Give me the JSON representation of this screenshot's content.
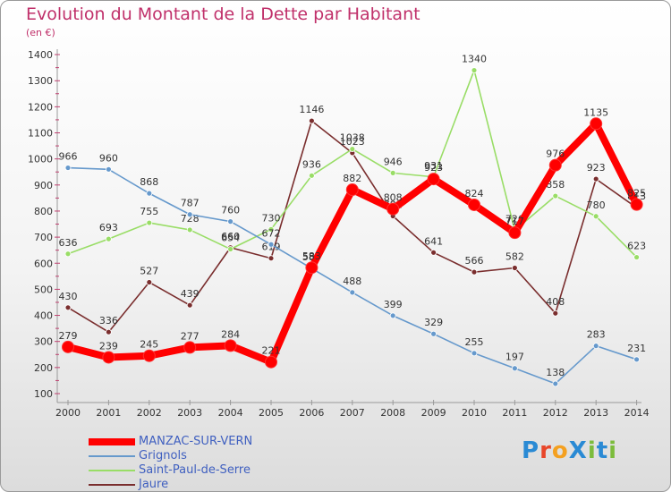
{
  "title": "Evolution du Montant de la Dette par Habitant",
  "subtitle": "(en €)",
  "logo": {
    "text": "ProXiti",
    "letters": [
      "P",
      "r",
      "o",
      "X",
      "i",
      "t",
      "i"
    ],
    "colors": [
      "#2a8ad4",
      "#e8462a",
      "#f4a020",
      "#2a8ad4",
      "#7cbc3c",
      "#2a8ad4",
      "#7cbc3c"
    ]
  },
  "chart_data": {
    "type": "line",
    "categories": [
      "2000",
      "2001",
      "2002",
      "2003",
      "2004",
      "2005",
      "2006",
      "2007",
      "2008",
      "2009",
      "2010",
      "2011",
      "2012",
      "2013",
      "2014"
    ],
    "ylim": [
      100,
      1400
    ],
    "yticks": [
      100,
      200,
      300,
      400,
      500,
      600,
      700,
      800,
      900,
      1000,
      1100,
      1200,
      1300,
      1400
    ],
    "grid": false,
    "legend_position": "bottom-left",
    "series": [
      {
        "name": "Jaure",
        "color": "#7a2e2e",
        "values": [
          430,
          336,
          527,
          439,
          660,
          619,
          1146,
          1023,
          781,
          641,
          566,
          582,
          408,
          923,
          813
        ]
      },
      {
        "name": "Saint-Paul-de-Serre",
        "color": "#99dd66",
        "values": [
          636,
          693,
          755,
          728,
          654,
          730,
          936,
          1038,
          946,
          931,
          1340,
          726,
          858,
          780,
          623
        ]
      },
      {
        "name": "Grignols",
        "color": "#6699cc",
        "values": [
          966,
          960,
          868,
          787,
          760,
          672,
          580,
          488,
          399,
          329,
          255,
          197,
          138,
          283,
          231
        ]
      },
      {
        "name": "MANZAC-SUR-VERN",
        "color": "#ff0000",
        "values": [
          279,
          239,
          245,
          277,
          284,
          221,
          583,
          882,
          808,
          923,
          824,
          717,
          976,
          1135,
          825
        ]
      }
    ],
    "legend": [
      "MANZAC-SUR-VERN",
      "Grignols",
      "Saint-Paul-de-Serre",
      "Jaure"
    ]
  }
}
